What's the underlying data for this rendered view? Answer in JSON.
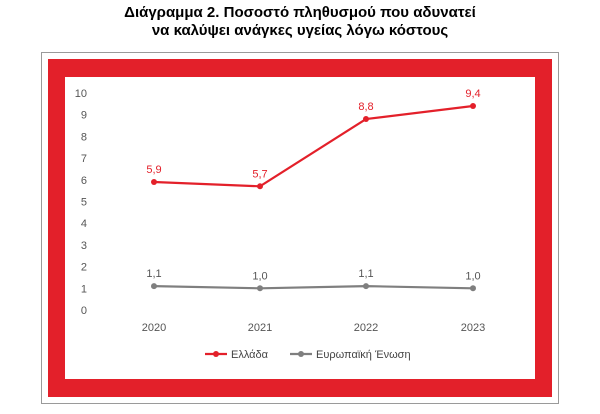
{
  "title_line1": "Διάγραμμα 2. Ποσοστό πληθυσμού που αδυνατεί",
  "title_line2": "να καλύψει ανάγκες υγείας λόγω κόστους",
  "colors": {
    "frame": "#e3202a",
    "greece": "#e3202a",
    "eu": "#7f7f7f"
  },
  "chart_data": {
    "type": "line",
    "title": "Διάγραμμα 2. Ποσοστό πληθυσμού που αδυνατεί να καλύψει ανάγκες υγείας λόγω κόστους",
    "x": [
      "2020",
      "2021",
      "2022",
      "2023"
    ],
    "ylim": [
      0,
      10
    ],
    "yticks": [
      "0",
      "1",
      "2",
      "3",
      "4",
      "5",
      "6",
      "7",
      "8",
      "9",
      "10"
    ],
    "grid": false,
    "legend_position": "bottom",
    "series": [
      {
        "name": "Ελλάδα",
        "values": [
          5.9,
          5.7,
          8.8,
          9.4
        ],
        "labels": [
          "5,9",
          "5,7",
          "8,8",
          "9,4"
        ]
      },
      {
        "name": "Ευρωπαϊκή Ένωση",
        "values": [
          1.1,
          1.0,
          1.1,
          1.0
        ],
        "labels": [
          "1,1",
          "1,0",
          "1,1",
          "1,0"
        ]
      }
    ]
  }
}
